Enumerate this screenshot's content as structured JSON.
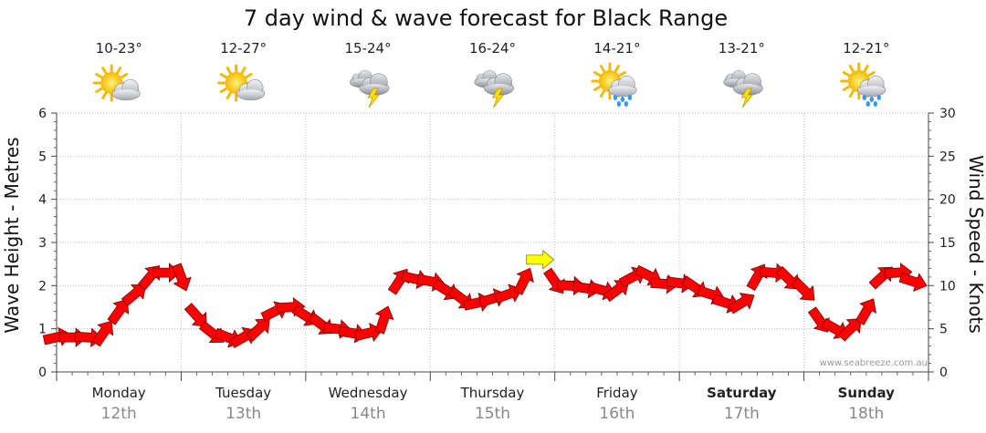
{
  "chart_data": {
    "type": "line",
    "title": "7 day wind & wave forecast for Black Range",
    "ylabel_left": "Wave Height - Metres",
    "ylabel_right": "Wind Speed - Knots",
    "ylim_left": [
      0,
      6
    ],
    "ylim_right": [
      0,
      30
    ],
    "yticks_left": [
      "0",
      "1",
      "2",
      "3",
      "4",
      "5",
      "6"
    ],
    "yticks_right": [
      "0",
      "5",
      "10",
      "15",
      "20",
      "25",
      "30"
    ],
    "days": [
      {
        "name": "Monday",
        "date": "12th",
        "temp": "10-23°",
        "icon": "sun-cloud-icon",
        "bold": false
      },
      {
        "name": "Tuesday",
        "date": "13th",
        "temp": "12-27°",
        "icon": "sun-cloud-icon",
        "bold": false
      },
      {
        "name": "Wednesday",
        "date": "14th",
        "temp": "15-24°",
        "icon": "storm-icon",
        "bold": false
      },
      {
        "name": "Thursday",
        "date": "15th",
        "temp": "16-24°",
        "icon": "storm-icon",
        "bold": false
      },
      {
        "name": "Friday",
        "date": "16th",
        "temp": "14-21°",
        "icon": "sun-rain-icon",
        "bold": false
      },
      {
        "name": "Saturday",
        "date": "17th",
        "temp": "13-21°",
        "icon": "storm-icon",
        "bold": true
      },
      {
        "name": "Sunday",
        "date": "18th",
        "temp": "12-21°",
        "icon": "sun-rain-icon",
        "bold": true
      }
    ],
    "series": [
      {
        "name": "wind",
        "unit": "knots",
        "color": "#ff0000",
        "highlight_color": "#ffff00",
        "x_hours": [
          0,
          3,
          6,
          9,
          12,
          15,
          18,
          21,
          24,
          27,
          30,
          33,
          36,
          39,
          42,
          45,
          48,
          51,
          54,
          57,
          60,
          63,
          66,
          69,
          72,
          75,
          78,
          81,
          84,
          87,
          90,
          93,
          96,
          99,
          102,
          105,
          108,
          111,
          114,
          117,
          120,
          123,
          126,
          129,
          132,
          135,
          138,
          141,
          144,
          147,
          150,
          153,
          156,
          159,
          162,
          165
        ],
        "values": [
          4,
          4,
          4,
          4.5,
          7,
          9,
          11,
          11.5,
          11,
          6.5,
          4.5,
          4,
          4,
          5,
          7,
          7.5,
          6.5,
          5.5,
          5,
          4.5,
          4.5,
          6,
          10.5,
          10.8,
          10.5,
          9.5,
          8.5,
          8,
          8.5,
          9,
          10.5,
          13,
          10.5,
          10,
          9.7,
          9.5,
          9.5,
          11,
          11.2,
          10.2,
          10.3,
          9.8,
          9,
          8,
          8,
          11,
          11.5,
          10.8,
          9.5,
          6,
          5,
          5,
          7,
          11,
          11.5,
          10.5
        ]
      }
    ]
  },
  "credit": "www.seabreeze.com.au",
  "colors": {
    "arrow_fill": "#ff0000",
    "arrow_stroke": "#7a0000",
    "grid": "#bbbbbb",
    "sun": "#ffd21a",
    "cloud": "#c9cdd3",
    "bolt": "#ffe000",
    "rain": "#3399ff"
  }
}
